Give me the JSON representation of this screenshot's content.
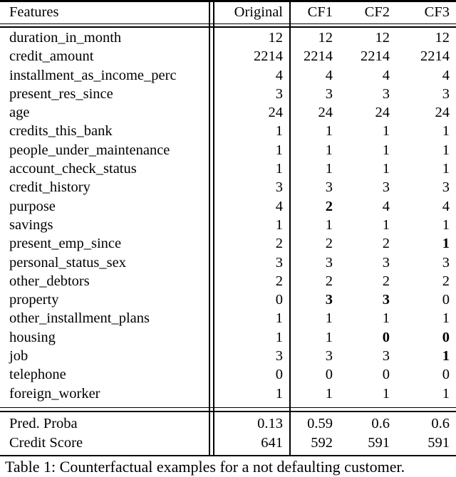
{
  "table": {
    "header": {
      "features_label": "Features",
      "columns": [
        "Original",
        "CF1",
        "CF2",
        "CF3"
      ]
    },
    "rows": [
      {
        "feature": "duration_in_month",
        "values": [
          "12",
          "12",
          "12",
          "12"
        ],
        "bold": [
          false,
          false,
          false,
          false
        ]
      },
      {
        "feature": "credit_amount",
        "values": [
          "2214",
          "2214",
          "2214",
          "2214"
        ],
        "bold": [
          false,
          false,
          false,
          false
        ]
      },
      {
        "feature": "installment_as_income_perc",
        "values": [
          "4",
          "4",
          "4",
          "4"
        ],
        "bold": [
          false,
          false,
          false,
          false
        ]
      },
      {
        "feature": "present_res_since",
        "values": [
          "3",
          "3",
          "3",
          "3"
        ],
        "bold": [
          false,
          false,
          false,
          false
        ]
      },
      {
        "feature": "age",
        "values": [
          "24",
          "24",
          "24",
          "24"
        ],
        "bold": [
          false,
          false,
          false,
          false
        ]
      },
      {
        "feature": "credits_this_bank",
        "values": [
          "1",
          "1",
          "1",
          "1"
        ],
        "bold": [
          false,
          false,
          false,
          false
        ]
      },
      {
        "feature": "people_under_maintenance",
        "values": [
          "1",
          "1",
          "1",
          "1"
        ],
        "bold": [
          false,
          false,
          false,
          false
        ]
      },
      {
        "feature": "account_check_status",
        "values": [
          "1",
          "1",
          "1",
          "1"
        ],
        "bold": [
          false,
          false,
          false,
          false
        ]
      },
      {
        "feature": "credit_history",
        "values": [
          "3",
          "3",
          "3",
          "3"
        ],
        "bold": [
          false,
          false,
          false,
          false
        ]
      },
      {
        "feature": "purpose",
        "values": [
          "4",
          "2",
          "4",
          "4"
        ],
        "bold": [
          false,
          true,
          false,
          false
        ]
      },
      {
        "feature": "savings",
        "values": [
          "1",
          "1",
          "1",
          "1"
        ],
        "bold": [
          false,
          false,
          false,
          false
        ]
      },
      {
        "feature": "present_emp_since",
        "values": [
          "2",
          "2",
          "2",
          "1"
        ],
        "bold": [
          false,
          false,
          false,
          true
        ]
      },
      {
        "feature": "personal_status_sex",
        "values": [
          "3",
          "3",
          "3",
          "3"
        ],
        "bold": [
          false,
          false,
          false,
          false
        ]
      },
      {
        "feature": "other_debtors",
        "values": [
          "2",
          "2",
          "2",
          "2"
        ],
        "bold": [
          false,
          false,
          false,
          false
        ]
      },
      {
        "feature": "property",
        "values": [
          "0",
          "3",
          "3",
          "0"
        ],
        "bold": [
          false,
          true,
          true,
          false
        ]
      },
      {
        "feature": "other_installment_plans",
        "values": [
          "1",
          "1",
          "1",
          "1"
        ],
        "bold": [
          false,
          false,
          false,
          false
        ]
      },
      {
        "feature": "housing",
        "values": [
          "1",
          "1",
          "0",
          "0"
        ],
        "bold": [
          false,
          false,
          true,
          true
        ]
      },
      {
        "feature": "job",
        "values": [
          "3",
          "3",
          "3",
          "1"
        ],
        "bold": [
          false,
          false,
          false,
          true
        ]
      },
      {
        "feature": "telephone",
        "values": [
          "0",
          "0",
          "0",
          "0"
        ],
        "bold": [
          false,
          false,
          false,
          false
        ]
      },
      {
        "feature": "foreign_worker",
        "values": [
          "1",
          "1",
          "1",
          "1"
        ],
        "bold": [
          false,
          false,
          false,
          false
        ]
      }
    ],
    "footer_rows": [
      {
        "feature": "Pred. Proba",
        "values": [
          "0.13",
          "0.59",
          "0.6",
          "0.6"
        ],
        "bold": [
          false,
          false,
          false,
          false
        ]
      },
      {
        "feature": "Credit Score",
        "values": [
          "641",
          "592",
          "591",
          "591"
        ],
        "bold": [
          false,
          false,
          false,
          false
        ]
      }
    ]
  },
  "caption": "Table 1: Counterfactual examples for a not defaulting customer.",
  "colors": {
    "text": "#000000",
    "background": "#ffffff",
    "rule": "#000000"
  }
}
